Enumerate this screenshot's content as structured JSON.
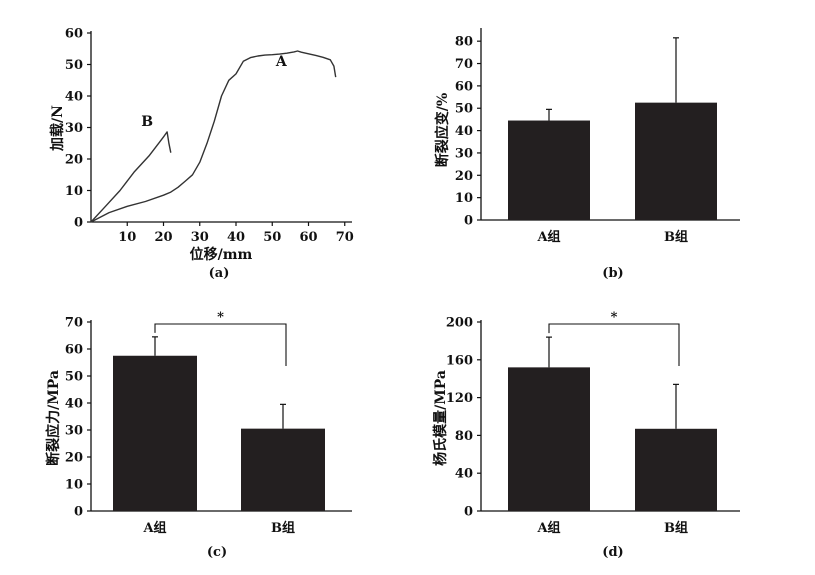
{
  "chart_data": [
    {
      "panel_label": "(a)",
      "type": "line",
      "xlabel": "位移/mm",
      "ylabel": "加载/N",
      "xlim": [
        0,
        72
      ],
      "ylim": [
        0,
        60
      ],
      "xticks": [
        10,
        20,
        30,
        40,
        50,
        60,
        70
      ],
      "yticks": [
        0,
        10,
        20,
        30,
        40,
        50,
        60
      ],
      "series": [
        {
          "name": "A",
          "x": [
            0,
            5,
            10,
            15,
            20,
            22,
            24,
            26,
            28,
            30,
            32,
            34,
            36,
            38,
            40,
            42,
            44,
            46,
            48,
            50,
            52,
            54,
            56,
            57,
            58,
            60,
            62,
            64,
            66,
            67,
            67.5
          ],
          "y": [
            0,
            3,
            5,
            6.5,
            8.5,
            9.5,
            11,
            13,
            15,
            19,
            25,
            32,
            40,
            45,
            47,
            51,
            52.2,
            52.7,
            53,
            53.1,
            53.3,
            53.6,
            54,
            54.3,
            53.9,
            53.4,
            52.9,
            52.3,
            51.5,
            49.5,
            46
          ]
        },
        {
          "name": "B",
          "x": [
            0,
            4,
            8,
            12,
            16,
            19,
            20,
            21,
            21.5,
            22
          ],
          "y": [
            0,
            5,
            10,
            16,
            21,
            25.5,
            27,
            28.6,
            25,
            22
          ]
        }
      ]
    },
    {
      "panel_label": "(b)",
      "type": "bar",
      "ylabel": "断裂应变/%",
      "categories": [
        "A组",
        "B组"
      ],
      "values": [
        44.5,
        52.5
      ],
      "errors": [
        5,
        29
      ],
      "ylim": [
        0,
        85
      ],
      "yticks": [
        0,
        10,
        20,
        30,
        40,
        50,
        60,
        70,
        80
      ]
    },
    {
      "panel_label": "(c)",
      "type": "bar",
      "ylabel": "断裂应力/MPa",
      "categories": [
        "A组",
        "B组"
      ],
      "values": [
        57.5,
        30.5
      ],
      "errors": [
        7,
        9
      ],
      "ylim": [
        0,
        70
      ],
      "yticks": [
        0,
        10,
        20,
        30,
        40,
        50,
        60,
        70
      ],
      "significance": "*"
    },
    {
      "panel_label": "(d)",
      "type": "bar",
      "ylabel": "杨氏模量/MPa",
      "categories": [
        "A组",
        "B组"
      ],
      "values": [
        152,
        87
      ],
      "errors": [
        32,
        47
      ],
      "ylim": [
        0,
        200
      ],
      "yticks": [
        0,
        40,
        80,
        120,
        160,
        200
      ],
      "significance": "*"
    }
  ]
}
